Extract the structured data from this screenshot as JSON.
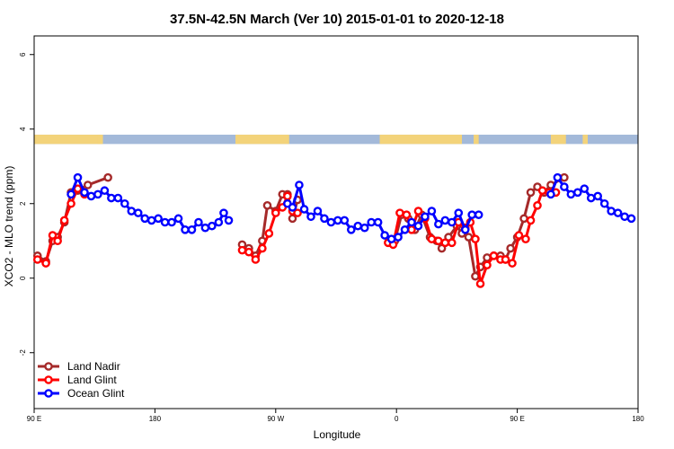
{
  "chart_data": {
    "type": "line",
    "title": "37.5N-42.5N March (Ver 10)   2015-01-01 to 2020-12-18",
    "xlabel": "Longitude",
    "ylabel": "XCO2 - MLO trend (ppm)",
    "xlim": [
      90,
      450
    ],
    "ylim": [
      -3.5,
      6.5
    ],
    "x_ticks": [
      {
        "value": 90,
        "label": "90 E"
      },
      {
        "value": 162,
        "label": "180"
      },
      {
        "value": 234,
        "label": "90 W"
      },
      {
        "value": 306,
        "label": "0"
      },
      {
        "value": 378,
        "label": "90 E"
      },
      {
        "value": 450,
        "label": "180"
      }
    ],
    "y_ticks": [
      {
        "value": -2,
        "label": "-2"
      },
      {
        "value": 0,
        "label": "0"
      },
      {
        "value": 2,
        "label": "2"
      },
      {
        "value": 4,
        "label": "4"
      },
      {
        "value": 6,
        "label": "6"
      }
    ],
    "land_mask_band": {
      "y_range": [
        3.6,
        3.85
      ],
      "ocean_color": "#a3b9d9",
      "land_color": "#f3d37a",
      "land_x_spans": [
        [
          90,
          130
        ],
        [
          128,
          131
        ],
        [
          210,
          242
        ],
        [
          296,
          330
        ],
        [
          330,
          345
        ],
        [
          352,
          355
        ],
        [
          398,
          407
        ],
        [
          417,
          420
        ]
      ]
    },
    "legend": {
      "position": "bottom-left",
      "entries": [
        {
          "name": "Land Nadir",
          "color": "#a52a2a"
        },
        {
          "name": "Land Glint",
          "color": "#ff0000"
        },
        {
          "name": "Ocean Glint",
          "color": "#0000ff"
        }
      ]
    },
    "series": [
      {
        "name": "Land Nadir",
        "color": "#a52a2a",
        "segments": [
          [
            [
              92,
              0.6
            ],
            [
              97,
              0.45
            ],
            [
              101,
              1.0
            ],
            [
              104,
              1.1
            ],
            [
              108,
              1.5
            ],
            [
              112,
              2.3
            ],
            [
              116,
              2.35
            ],
            [
              122,
              2.5
            ],
            [
              134,
              2.7
            ]
          ],
          [
            [
              214,
              0.9
            ],
            [
              218,
              0.8
            ],
            [
              222,
              0.6
            ],
            [
              226,
              1.0
            ],
            [
              229,
              1.95
            ],
            [
              234,
              1.8
            ],
            [
              238,
              2.25
            ],
            [
              241,
              2.25
            ],
            [
              244,
              1.6
            ],
            [
              247,
              2.1
            ]
          ],
          [
            [
              305,
              1.0
            ],
            [
              309,
              1.7
            ],
            [
              313,
              1.6
            ],
            [
              317,
              1.3
            ],
            [
              321,
              1.7
            ],
            [
              326,
              1.1
            ],
            [
              330,
              1.0
            ],
            [
              333,
              0.8
            ],
            [
              337,
              1.1
            ],
            [
              342,
              1.4
            ],
            [
              345,
              1.2
            ],
            [
              349,
              1.1
            ],
            [
              353,
              0.05
            ],
            [
              356,
              0.3
            ],
            [
              360,
              0.55
            ],
            [
              364,
              0.6
            ],
            [
              368,
              0.6
            ],
            [
              371,
              0.5
            ],
            [
              374,
              0.8
            ],
            [
              378,
              1.1
            ],
            [
              382,
              1.6
            ],
            [
              386,
              2.3
            ],
            [
              390,
              2.45
            ],
            [
              394,
              2.3
            ],
            [
              398,
              2.5
            ],
            [
              406,
              2.7
            ]
          ]
        ]
      },
      {
        "name": "Land Glint",
        "color": "#ff0000",
        "segments": [
          [
            [
              92,
              0.5
            ],
            [
              97,
              0.4
            ],
            [
              101,
              1.15
            ],
            [
              104,
              1.0
            ],
            [
              108,
              1.55
            ],
            [
              112,
              2.0
            ],
            [
              116,
              2.4
            ],
            [
              120,
              2.25
            ]
          ],
          [
            [
              214,
              0.75
            ],
            [
              218,
              0.7
            ],
            [
              222,
              0.5
            ],
            [
              226,
              0.8
            ],
            [
              230,
              1.2
            ],
            [
              234,
              1.75
            ],
            [
              238,
              1.9
            ],
            [
              241,
              2.2
            ],
            [
              244,
              1.8
            ],
            [
              247,
              1.75
            ]
          ],
          [
            [
              301,
              0.95
            ],
            [
              304,
              0.9
            ],
            [
              308,
              1.75
            ],
            [
              312,
              1.7
            ],
            [
              315,
              1.3
            ],
            [
              319,
              1.8
            ],
            [
              323,
              1.6
            ],
            [
              327,
              1.05
            ],
            [
              331,
              1.0
            ],
            [
              335,
              0.95
            ],
            [
              339,
              0.95
            ],
            [
              343,
              1.5
            ],
            [
              347,
              1.35
            ],
            [
              350,
              1.5
            ],
            [
              353,
              1.05
            ],
            [
              356,
              -0.15
            ],
            [
              360,
              0.35
            ],
            [
              364,
              0.6
            ],
            [
              368,
              0.5
            ],
            [
              371,
              0.5
            ],
            [
              375,
              0.4
            ],
            [
              379,
              1.15
            ],
            [
              383,
              1.05
            ],
            [
              386,
              1.55
            ],
            [
              390,
              1.95
            ],
            [
              393,
              2.35
            ],
            [
              397,
              2.3
            ],
            [
              401,
              2.3
            ]
          ]
        ]
      },
      {
        "name": "Ocean Glint",
        "color": "#0000ff",
        "segments": [
          [
            [
              112,
              2.25
            ],
            [
              116,
              2.7
            ],
            [
              120,
              2.3
            ],
            [
              124,
              2.2
            ],
            [
              128,
              2.25
            ],
            [
              132,
              2.35
            ],
            [
              136,
              2.15
            ],
            [
              140,
              2.15
            ],
            [
              144,
              2.0
            ],
            [
              148,
              1.8
            ],
            [
              152,
              1.75
            ],
            [
              156,
              1.6
            ],
            [
              160,
              1.55
            ],
            [
              164,
              1.6
            ],
            [
              168,
              1.5
            ],
            [
              172,
              1.5
            ],
            [
              176,
              1.6
            ],
            [
              180,
              1.3
            ],
            [
              184,
              1.3
            ],
            [
              188,
              1.5
            ],
            [
              192,
              1.35
            ],
            [
              196,
              1.4
            ],
            [
              200,
              1.5
            ],
            [
              203,
              1.75
            ],
            [
              206,
              1.55
            ]
          ],
          [
            [
              241,
              2.0
            ],
            [
              244,
              1.9
            ],
            [
              248,
              2.5
            ],
            [
              251,
              1.85
            ],
            [
              255,
              1.65
            ],
            [
              259,
              1.8
            ],
            [
              263,
              1.6
            ],
            [
              267,
              1.5
            ],
            [
              271,
              1.55
            ],
            [
              275,
              1.55
            ],
            [
              279,
              1.3
            ],
            [
              283,
              1.4
            ],
            [
              287,
              1.35
            ],
            [
              291,
              1.5
            ],
            [
              295,
              1.5
            ],
            [
              299,
              1.15
            ],
            [
              303,
              1.05
            ],
            [
              307,
              1.1
            ],
            [
              311,
              1.3
            ],
            [
              315,
              1.5
            ],
            [
              319,
              1.4
            ],
            [
              323,
              1.65
            ],
            [
              327,
              1.8
            ],
            [
              331,
              1.45
            ],
            [
              335,
              1.55
            ],
            [
              339,
              1.5
            ],
            [
              343,
              1.75
            ],
            [
              347,
              1.3
            ],
            [
              351,
              1.7
            ],
            [
              355,
              1.7
            ]
          ],
          [
            [
              398,
              2.25
            ],
            [
              402,
              2.7
            ],
            [
              406,
              2.45
            ],
            [
              410,
              2.25
            ],
            [
              414,
              2.3
            ],
            [
              418,
              2.4
            ],
            [
              422,
              2.15
            ],
            [
              426,
              2.2
            ],
            [
              430,
              2.0
            ],
            [
              434,
              1.8
            ],
            [
              438,
              1.75
            ],
            [
              442,
              1.65
            ],
            [
              446,
              1.6
            ]
          ]
        ]
      }
    ]
  }
}
